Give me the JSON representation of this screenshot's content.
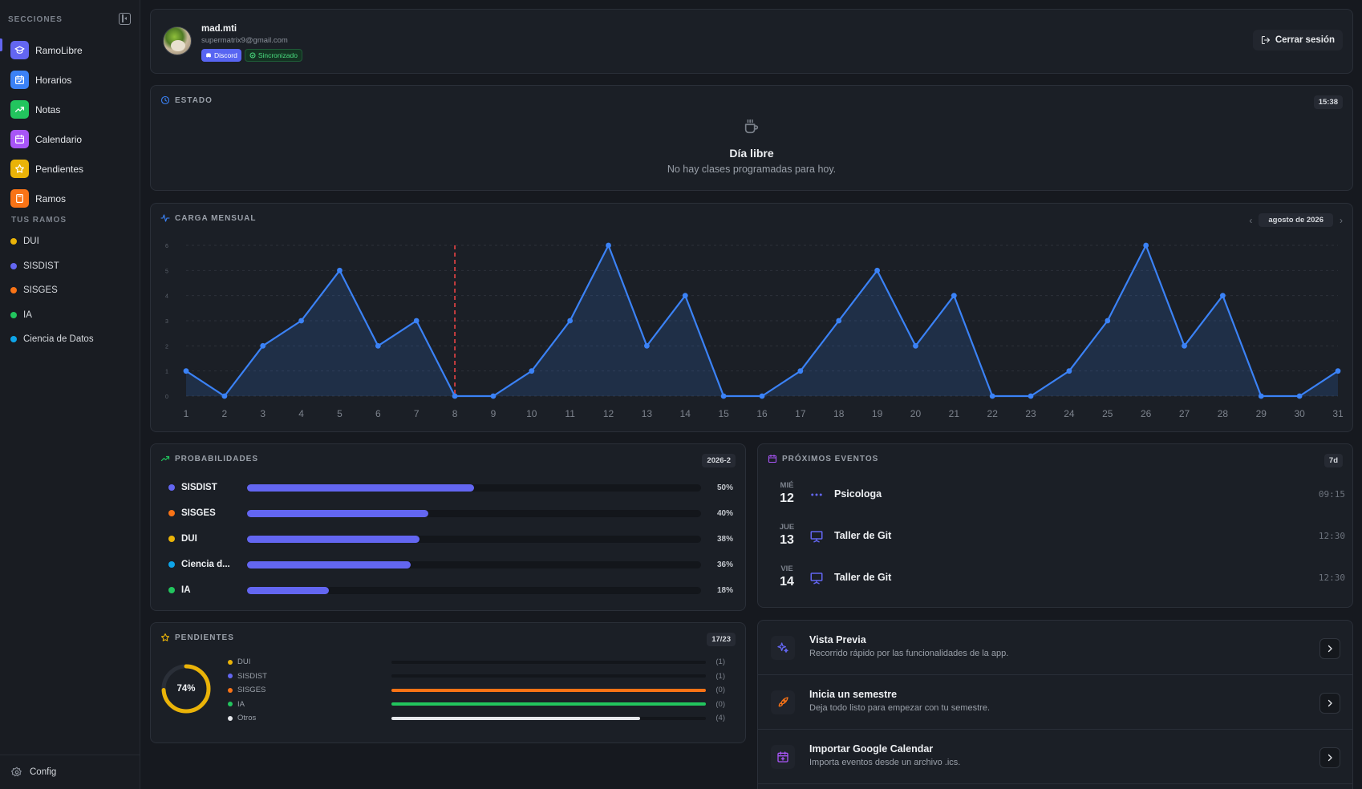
{
  "sidebar": {
    "header": "SECCIONES",
    "items": [
      {
        "label": "RamoLibre",
        "icon": "graduation-cap-icon",
        "color": "#6366f1"
      },
      {
        "label": "Horarios",
        "icon": "calendar-check-icon",
        "color": "#3b82f6"
      },
      {
        "label": "Notas",
        "icon": "trending-up-icon",
        "color": "#22c55e"
      },
      {
        "label": "Calendario",
        "icon": "calendar-icon",
        "color": "#a855f7"
      },
      {
        "label": "Pendientes",
        "icon": "star-icon",
        "color": "#eab308"
      },
      {
        "label": "Ramos",
        "icon": "book-icon",
        "color": "#f97316"
      }
    ],
    "courses_header": "TUS RAMOS",
    "courses": [
      {
        "label": "DUI",
        "color": "#eab308"
      },
      {
        "label": "SISDIST",
        "color": "#6366f1"
      },
      {
        "label": "SISGES",
        "color": "#f97316"
      },
      {
        "label": "IA",
        "color": "#22c55e"
      },
      {
        "label": "Ciencia de Datos",
        "color": "#0ea5e9"
      }
    ],
    "footer": "Config"
  },
  "profile": {
    "name": "mad.mti",
    "email": "supermatrix9@gmail.com",
    "badge_discord": "Discord",
    "badge_sync": "Sincronizado",
    "logout": "Cerrar sesión"
  },
  "estado": {
    "title": "ESTADO",
    "time": "15:38",
    "heading": "Día libre",
    "message": "No hay clases programadas para hoy."
  },
  "carga": {
    "title": "CARGA MENSUAL",
    "month": "agosto de 2026"
  },
  "chart_data": {
    "type": "area",
    "x": [
      1,
      2,
      3,
      4,
      5,
      6,
      7,
      8,
      9,
      10,
      11,
      12,
      13,
      14,
      15,
      16,
      17,
      18,
      19,
      20,
      21,
      22,
      23,
      24,
      25,
      26,
      27,
      28,
      29,
      30,
      31
    ],
    "values": [
      1,
      0,
      2,
      3,
      5,
      2,
      3,
      0,
      0,
      1,
      3,
      6,
      2,
      4,
      0,
      0,
      1,
      3,
      5,
      2,
      4,
      0,
      0,
      1,
      3,
      6,
      2,
      4,
      0,
      0,
      1
    ],
    "yticks": [
      0,
      1,
      2,
      3,
      4,
      5,
      6
    ],
    "ylim": [
      0,
      6
    ],
    "marker_x": 8,
    "color": "#3b82f6",
    "marker_color": "#ef4444"
  },
  "probabilidades": {
    "title": "PROBABILIDADES",
    "badge": "2026-2",
    "rows": [
      {
        "name": "SISDIST",
        "pct_label": "50%",
        "value": 50,
        "color": "#6366f1"
      },
      {
        "name": "SISGES",
        "pct_label": "40%",
        "value": 40,
        "color": "#f97316"
      },
      {
        "name": "DUI",
        "pct_label": "38%",
        "value": 38,
        "color": "#eab308"
      },
      {
        "name": "Ciencia d...",
        "pct_label": "36%",
        "value": 36,
        "color": "#0ea5e9"
      },
      {
        "name": "IA",
        "pct_label": "18%",
        "value": 18,
        "color": "#22c55e"
      }
    ]
  },
  "eventos": {
    "title": "PRÓXIMOS EVENTOS",
    "badge": "7d",
    "items": [
      {
        "dow": "MIÉ",
        "day": "12",
        "title": "Psicologa",
        "time": "09:15",
        "icon": "dots-icon"
      },
      {
        "dow": "JUE",
        "day": "13",
        "title": "Taller de Git",
        "time": "12:30",
        "icon": "presentation-icon"
      },
      {
        "dow": "VIE",
        "day": "14",
        "title": "Taller de Git",
        "time": "12:30",
        "icon": "presentation-icon"
      }
    ]
  },
  "pendientes": {
    "title": "PENDIENTES",
    "badge": "17/23",
    "ring_label": "74%",
    "ring_value": 74,
    "rows": [
      {
        "name": "DUI",
        "count": "(1)",
        "fill": 0,
        "color": "#eab308"
      },
      {
        "name": "SISDIST",
        "count": "(1)",
        "fill": 0,
        "color": "#6366f1"
      },
      {
        "name": "SISGES",
        "count": "(0)",
        "fill": 100,
        "color": "#f97316"
      },
      {
        "name": "IA",
        "count": "(0)",
        "fill": 100,
        "color": "#22c55e"
      },
      {
        "name": "Otros",
        "count": "(4)",
        "fill": 79,
        "color": "#e5e7eb"
      }
    ]
  },
  "acciones": [
    {
      "title": "Vista Previa",
      "subtitle": "Recorrido rápido por las funcionalidades de la app.",
      "icon": "sparkles-icon",
      "color": "#6366f1"
    },
    {
      "title": "Inicia un semestre",
      "subtitle": "Deja todo listo para empezar con tu semestre.",
      "icon": "rocket-icon",
      "color": "#f97316"
    },
    {
      "title": "Importar Google Calendar",
      "subtitle": "Importa eventos desde un archivo .ics.",
      "icon": "calendar-plus-icon",
      "color": "#a855f7"
    }
  ]
}
